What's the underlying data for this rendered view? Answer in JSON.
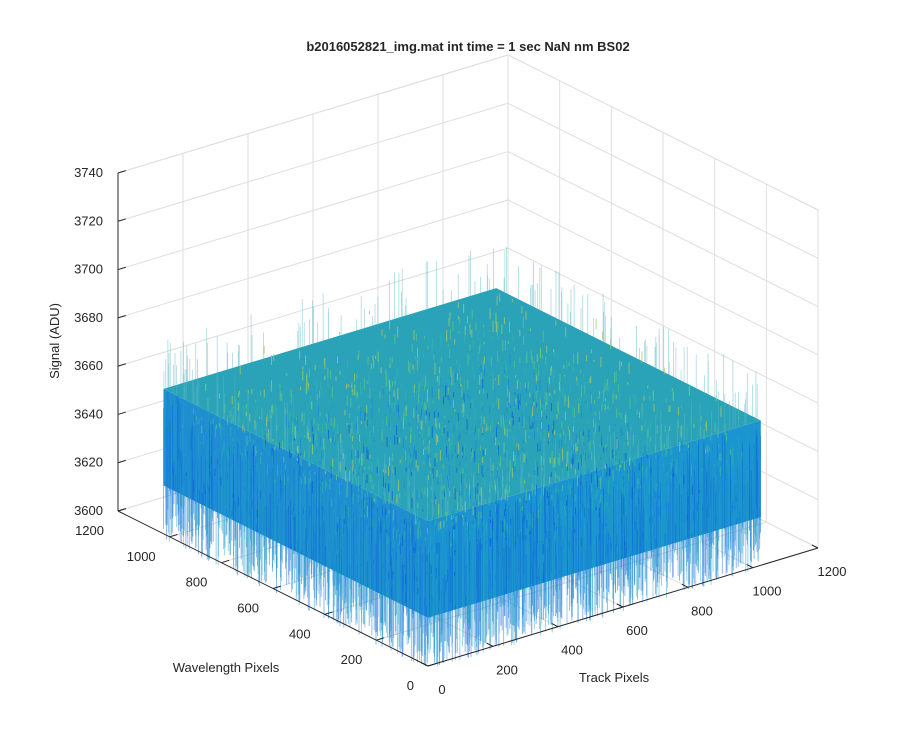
{
  "chart_data": {
    "type": "surface",
    "title": "b2016052821_img.mat int time = 1 sec  NaN nm BS02",
    "xlabel": "Track Pixels",
    "ylabel": "Wavelength Pixels",
    "zlabel": "Signal (ADU)",
    "xlim": [
      0,
      1200
    ],
    "ylim": [
      0,
      1200
    ],
    "zlim": [
      3600,
      3740
    ],
    "xticks": [
      "0",
      "200",
      "400",
      "600",
      "800",
      "1000",
      "1200"
    ],
    "yticks": [
      "0",
      "200",
      "400",
      "600",
      "800",
      "1000",
      "1200"
    ],
    "zticks": [
      "3600",
      "3620",
      "3640",
      "3660",
      "3680",
      "3700",
      "3720",
      "3740"
    ],
    "data_extent": {
      "x": [
        0,
        1024
      ],
      "y": [
        0,
        1024
      ]
    },
    "signal_typical_range": [
      3620,
      3660
    ],
    "signal_mean": 3640,
    "grid": true,
    "colormap": [
      "#0b5fd8",
      "#1b86d8",
      "#1fa3c6",
      "#34b3aa",
      "#62c08a",
      "#a9c85e"
    ]
  }
}
